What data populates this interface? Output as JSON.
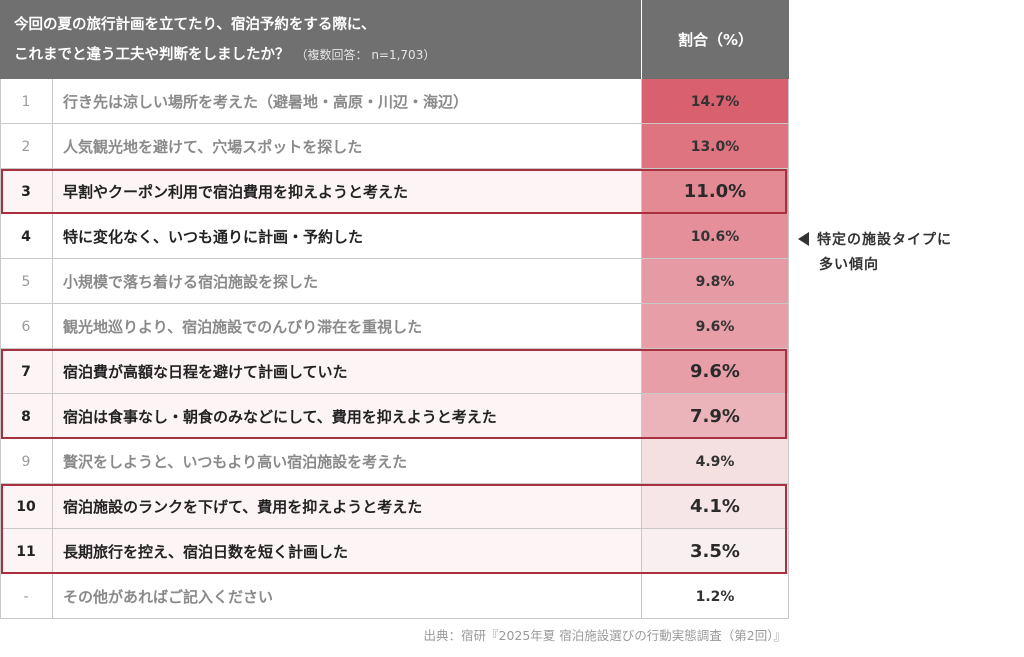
{
  "header": {
    "question_line1": "今回の夏の旅行計画を立てたり、宿泊予約をする際に、",
    "question_line2": "これまでと違う工夫や判断をしましたか？",
    "sample_note": "（複数回答： n=1,703）",
    "col_pct": "割合（%）"
  },
  "chart_data": {
    "type": "table",
    "unit": "%",
    "rows": [
      {
        "rank": "1",
        "label": "行き先は涼しい場所を考えた（避暑地・高原・川辺・海辺）",
        "value": 14.7,
        "display": "14.7%",
        "style": "normal",
        "color": "#d9616f"
      },
      {
        "rank": "2",
        "label": "人気観光地を避けて、穴場スポットを探した",
        "value": 13.0,
        "display": "13.0%",
        "style": "normal",
        "color": "#de7480"
      },
      {
        "rank": "3",
        "label": "早割やクーポン利用で宿泊費用を抑えようと考えた",
        "value": 11.0,
        "display": "11.0%",
        "style": "hi",
        "color": "#e38a95"
      },
      {
        "rank": "4",
        "label": "特に変化なく、いつも通りに計画・予約した",
        "value": 10.6,
        "display": "10.6%",
        "style": "dark",
        "color": "#e48f99"
      },
      {
        "rank": "5",
        "label": "小規模で落ち着ける宿泊施設を探した",
        "value": 9.8,
        "display": "9.8%",
        "style": "normal",
        "color": "#e69aa3"
      },
      {
        "rank": "6",
        "label": "観光地巡りより、宿泊施設でのんびり滞在を重視した",
        "value": 9.6,
        "display": "9.6%",
        "style": "normal",
        "color": "#e79ea7"
      },
      {
        "rank": "7",
        "label": "宿泊費が高額な日程を避けて計画していた",
        "value": 9.6,
        "display": "9.6%",
        "style": "hi",
        "color": "#e79ea7"
      },
      {
        "rank": "8",
        "label": "宿泊は食事なし・朝食のみなどにして、費用を抑えようと考えた",
        "value": 7.9,
        "display": "7.9%",
        "style": "hi",
        "color": "#ebb4ba"
      },
      {
        "rank": "9",
        "label": "贅沢をしようと、いつもより高い宿泊施設を考えた",
        "value": 4.9,
        "display": "4.9%",
        "style": "normal",
        "color": "#f4dfe1"
      },
      {
        "rank": "10",
        "label": "宿泊施設のランクを下げて、費用を抑えようと考えた",
        "value": 4.1,
        "display": "4.1%",
        "style": "hi",
        "color": "#f6e6e8"
      },
      {
        "rank": "11",
        "label": "長期旅行を控え、宿泊日数を短く計画した",
        "value": 3.5,
        "display": "3.5%",
        "style": "hi",
        "color": "#f8f0f0"
      },
      {
        "rank": "-",
        "label": "その他があればご記入ください",
        "value": 1.2,
        "display": "1.2%",
        "style": "normal",
        "color": "#ffffff"
      }
    ]
  },
  "annotation": {
    "line1": "特定の施設タイプに",
    "line2": "多い傾向"
  },
  "source": "出典：宿研『2025年夏 宿泊施設選びの行動実態調査（第2回）』"
}
